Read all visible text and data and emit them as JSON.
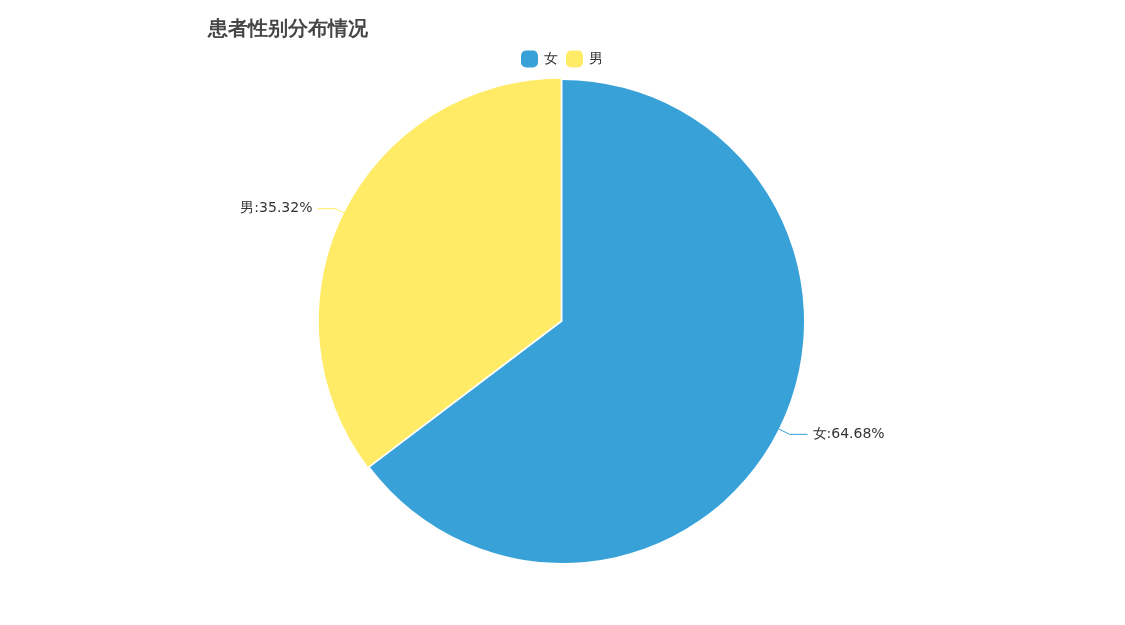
{
  "chart_data": {
    "type": "pie",
    "title": "患者性别分布情况",
    "categories": [
      "女",
      "男"
    ],
    "values": [
      64.68,
      35.32
    ],
    "colors": [
      "#38a2d8",
      "#ffeb66"
    ],
    "value_labels": [
      "女:64.68%",
      "男:35.32%"
    ],
    "legend": "top"
  }
}
